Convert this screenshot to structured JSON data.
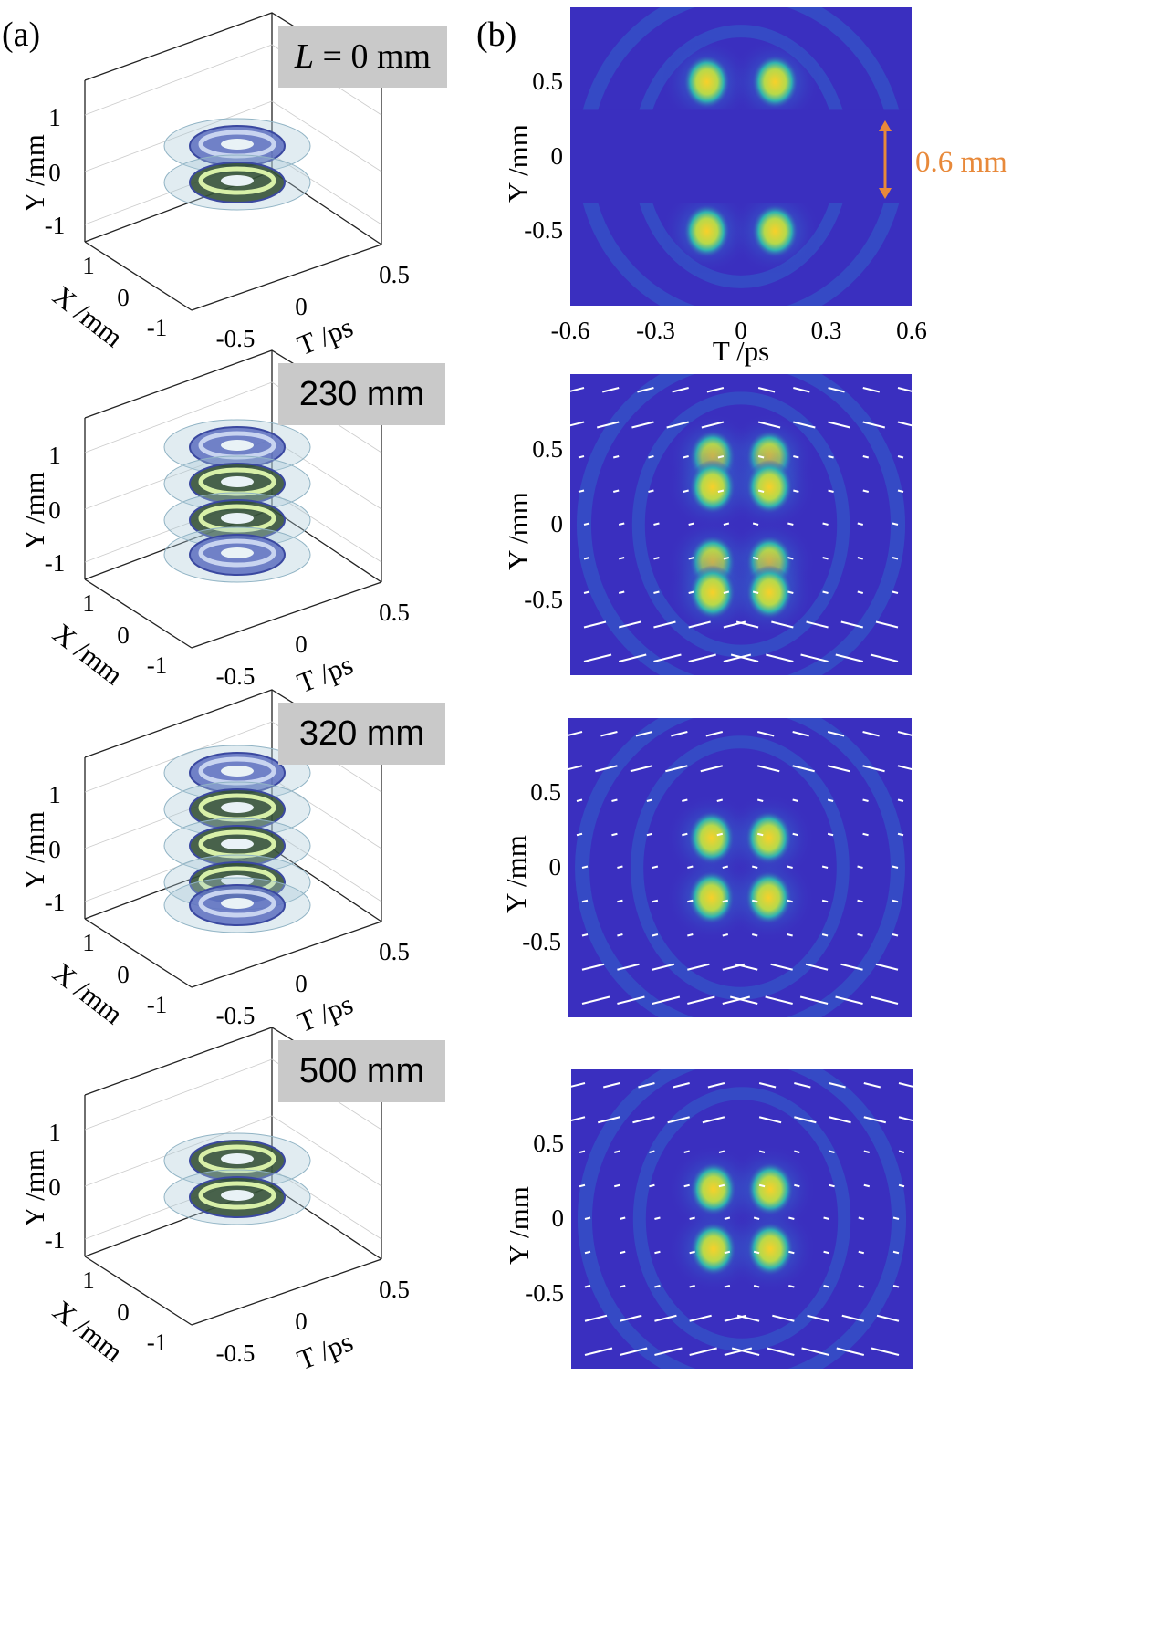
{
  "panel_a_label": "(a)",
  "panel_b_label": "(b)",
  "panel_a": {
    "first_label_prefix": "L",
    "first_label_suffix": " = 0 mm",
    "distance_labels": [
      "230 mm",
      "320 mm",
      "500 mm"
    ],
    "y_axis_label": "Y /mm",
    "x_axis_label": "X /mm",
    "t_axis_label": "T /ps",
    "y_ticks": [
      "1",
      "0",
      "-1"
    ],
    "x_ticks": [
      "1",
      "0",
      "-1"
    ],
    "t_ticks": [
      "0.5",
      "0",
      "-0.5"
    ]
  },
  "panel_b": {
    "y_axis_label": "Y /mm",
    "x_axis_label": "T /ps",
    "y_ticks": [
      "0.5",
      "0",
      "-0.5"
    ],
    "x_ticks": [
      "-0.6",
      "-0.3",
      "0",
      "0.3",
      "0.6"
    ],
    "gap_annotation": "0.6 mm",
    "colors": {
      "background": "#3a2fbf",
      "hot": "#f7d02a",
      "mid": "#2fb3b0",
      "arrow": "#ffffff",
      "annotation": "#e8893a"
    }
  },
  "chart_data": [
    {
      "type": "heatmap",
      "propagation_mm": 0,
      "x_range": [
        -0.6,
        0.6
      ],
      "y_range": [
        -1,
        1
      ],
      "peaks": [
        [
          -0.12,
          0.5
        ],
        [
          0.12,
          0.5
        ],
        [
          -0.12,
          -0.5
        ],
        [
          0.12,
          -0.5
        ]
      ]
    },
    {
      "type": "heatmap",
      "propagation_mm": 230,
      "x_range": [
        -0.6,
        0.6
      ],
      "y_range": [
        -1,
        1
      ],
      "peaks": [
        [
          -0.1,
          0.45
        ],
        [
          0.1,
          0.45
        ],
        [
          -0.1,
          0.25
        ],
        [
          0.1,
          0.25
        ],
        [
          -0.1,
          -0.25
        ],
        [
          0.1,
          -0.25
        ],
        [
          -0.1,
          -0.45
        ],
        [
          0.1,
          -0.45
        ]
      ]
    },
    {
      "type": "heatmap",
      "propagation_mm": 320,
      "x_range": [
        -0.6,
        0.6
      ],
      "y_range": [
        -1,
        1
      ],
      "peaks": [
        [
          -0.1,
          0.2
        ],
        [
          0.1,
          0.2
        ],
        [
          -0.1,
          -0.2
        ],
        [
          0.1,
          -0.2
        ]
      ]
    },
    {
      "type": "heatmap",
      "propagation_mm": 500,
      "x_range": [
        -0.6,
        0.6
      ],
      "y_range": [
        -1,
        1
      ],
      "peaks": [
        [
          -0.1,
          0.2
        ],
        [
          0.1,
          0.2
        ],
        [
          -0.1,
          -0.2
        ],
        [
          0.1,
          -0.2
        ]
      ]
    }
  ]
}
